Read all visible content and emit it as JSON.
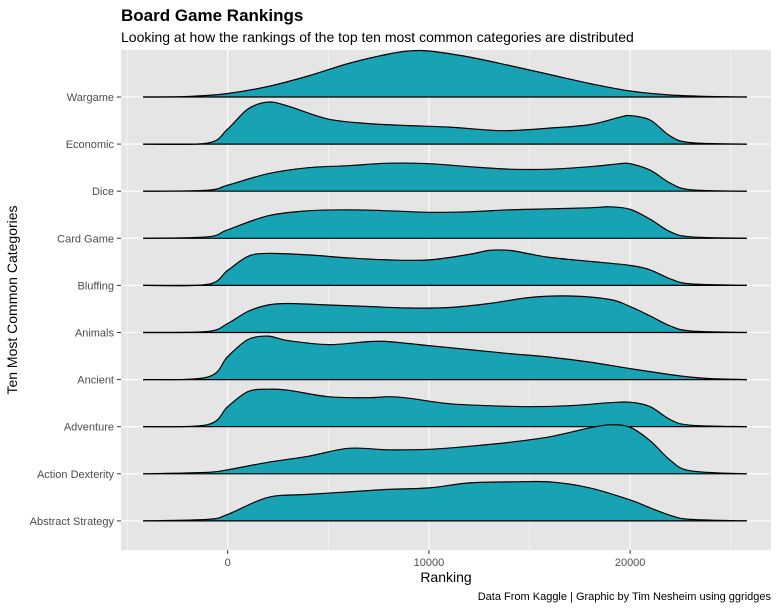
{
  "chart_data": {
    "type": "ridgeline",
    "title": "Board Game Rankings",
    "subtitle": "Looking at how the rankings of the top ten most common categories are distributed",
    "xlabel": "Ranking",
    "ylabel": "Ten Most Common Categories",
    "caption": "Data From Kaggle | Graphic by Tim Nesheim using ggridges",
    "xlim": [
      -5300,
      27000
    ],
    "x_ticks": [
      0,
      10000,
      20000
    ],
    "x_tick_labels": [
      "0",
      "10000",
      "20000"
    ],
    "density_range": [
      -4200,
      25800
    ],
    "grid": true,
    "legend": "none",
    "fill_color": "#17a3b3",
    "outline_color": "#000000",
    "panel_color": "#e5e5e5",
    "grid_color": "#ffffff",
    "categories": [
      "Wargame",
      "Economic",
      "Dice",
      "Card Game",
      "Bluffing",
      "Animals",
      "Ancient",
      "Adventure",
      "Action  Dexterity",
      "Abstract Strategy"
    ],
    "series": [
      {
        "category": "Wargame",
        "x": [
          -4200,
          -2000,
          0,
          2000,
          4000,
          6000,
          8000,
          9000,
          10000,
          12000,
          14000,
          16000,
          18000,
          20000,
          22000,
          24000,
          25800
        ],
        "density": [
          0,
          0.01,
          0.07,
          0.21,
          0.42,
          0.67,
          0.86,
          0.92,
          0.92,
          0.8,
          0.63,
          0.45,
          0.27,
          0.12,
          0.04,
          0.01,
          0
        ]
      },
      {
        "category": "Economic",
        "x": [
          -4200,
          -1000,
          0,
          1000,
          2000,
          3000,
          5000,
          7000,
          9000,
          11000,
          13000,
          14000,
          16000,
          18000,
          19500,
          20000,
          21000,
          22000,
          23000,
          25800
        ],
        "density": [
          0,
          0.02,
          0.3,
          0.7,
          0.84,
          0.76,
          0.5,
          0.41,
          0.37,
          0.34,
          0.28,
          0.27,
          0.32,
          0.39,
          0.54,
          0.57,
          0.48,
          0.16,
          0.03,
          0
        ]
      },
      {
        "category": "Dice",
        "x": [
          -4200,
          -1000,
          0,
          2000,
          4000,
          6000,
          8000,
          10000,
          12000,
          14000,
          16000,
          18000,
          19500,
          20000,
          21000,
          22000,
          23000,
          25800
        ],
        "density": [
          0,
          0.02,
          0.12,
          0.35,
          0.47,
          0.51,
          0.56,
          0.55,
          0.49,
          0.44,
          0.44,
          0.49,
          0.55,
          0.55,
          0.42,
          0.16,
          0.03,
          0
        ]
      },
      {
        "category": "Card Game",
        "x": [
          -4200,
          -1000,
          0,
          2000,
          4000,
          6000,
          8000,
          10000,
          12000,
          14000,
          16000,
          18000,
          19000,
          20000,
          21000,
          22000,
          23000,
          25800
        ],
        "density": [
          0,
          0.03,
          0.17,
          0.45,
          0.55,
          0.57,
          0.55,
          0.52,
          0.53,
          0.57,
          0.59,
          0.61,
          0.63,
          0.58,
          0.38,
          0.13,
          0.03,
          0
        ]
      },
      {
        "category": "Bluffing",
        "x": [
          -4200,
          -1000,
          0,
          1000,
          2000,
          4000,
          6000,
          8000,
          10000,
          12000,
          13000,
          14000,
          15000,
          16000,
          18000,
          20000,
          21000,
          22000,
          23000,
          25800
        ],
        "density": [
          0,
          0.02,
          0.3,
          0.58,
          0.64,
          0.61,
          0.55,
          0.51,
          0.51,
          0.62,
          0.7,
          0.7,
          0.63,
          0.56,
          0.48,
          0.4,
          0.31,
          0.13,
          0.03,
          0
        ]
      },
      {
        "category": "Animals",
        "x": [
          -4200,
          -1000,
          0,
          1000,
          2000,
          3000,
          5000,
          7000,
          9000,
          11000,
          13000,
          15000,
          17000,
          19000,
          20000,
          21000,
          22000,
          23000,
          25800
        ],
        "density": [
          0,
          0.02,
          0.18,
          0.42,
          0.55,
          0.58,
          0.55,
          0.52,
          0.49,
          0.5,
          0.58,
          0.7,
          0.73,
          0.66,
          0.52,
          0.33,
          0.13,
          0.03,
          0
        ]
      },
      {
        "category": "Ancient",
        "x": [
          -4200,
          -1000,
          0,
          1000,
          2000,
          3000,
          5000,
          7000,
          8000,
          10000,
          12000,
          14000,
          16000,
          18000,
          20000,
          22000,
          23000,
          24000,
          25800
        ],
        "density": [
          0,
          0.05,
          0.46,
          0.8,
          0.87,
          0.78,
          0.7,
          0.76,
          0.76,
          0.68,
          0.6,
          0.52,
          0.45,
          0.35,
          0.22,
          0.1,
          0.05,
          0.02,
          0
        ]
      },
      {
        "category": "Adventure",
        "x": [
          -4200,
          -1000,
          0,
          1000,
          2000,
          3000,
          5000,
          7000,
          8000,
          9000,
          11000,
          13000,
          15000,
          17000,
          19000,
          20000,
          21000,
          22000,
          23000,
          25800
        ],
        "density": [
          0,
          0.04,
          0.4,
          0.7,
          0.75,
          0.73,
          0.6,
          0.58,
          0.6,
          0.57,
          0.46,
          0.42,
          0.4,
          0.42,
          0.48,
          0.49,
          0.4,
          0.14,
          0.03,
          0
        ]
      },
      {
        "category": "Action  Dexterity",
        "x": [
          -4200,
          -1000,
          0,
          2000,
          4000,
          6000,
          8000,
          10000,
          12000,
          14000,
          16000,
          18000,
          19000,
          20000,
          21000,
          22000,
          23000,
          25800
        ],
        "density": [
          0,
          0.03,
          0.08,
          0.23,
          0.35,
          0.51,
          0.48,
          0.49,
          0.55,
          0.63,
          0.74,
          0.92,
          0.98,
          0.93,
          0.66,
          0.27,
          0.06,
          0
        ]
      },
      {
        "category": "Abstract Strategy",
        "x": [
          -4200,
          -1000,
          0,
          2000,
          4000,
          6000,
          8000,
          10000,
          12000,
          14000,
          16000,
          18000,
          20000,
          21000,
          22000,
          23000,
          25800
        ],
        "density": [
          0,
          0.03,
          0.13,
          0.47,
          0.53,
          0.58,
          0.63,
          0.66,
          0.76,
          0.78,
          0.78,
          0.66,
          0.42,
          0.26,
          0.11,
          0.03,
          0
        ]
      }
    ]
  }
}
